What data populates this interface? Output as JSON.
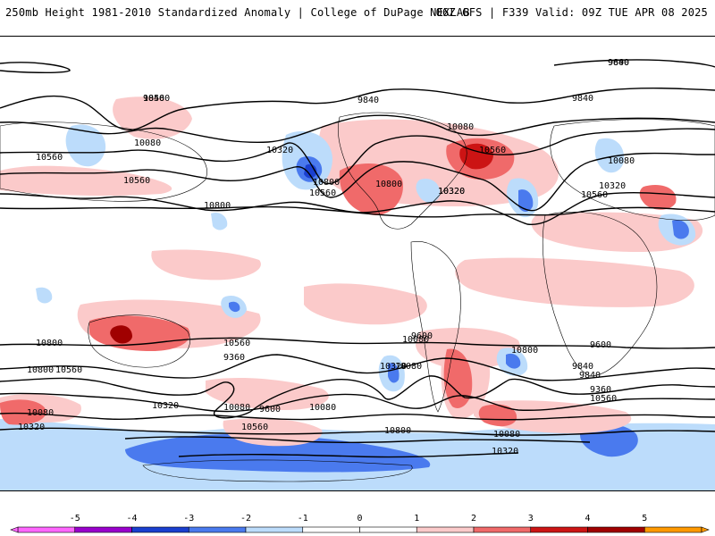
{
  "header": {
    "title": "250mb Height 1981-2010 Standardized Anomaly | College of DuPage NEXLAB",
    "run_info": "06Z GFS | F339 Valid: 09Z TUE APR 08 2025"
  },
  "map": {
    "contour_labels": [
      "9600",
      "9840",
      "9840",
      "10080",
      "10320",
      "10560",
      "10800",
      "10080",
      "10560",
      "10320",
      "9840",
      "10560",
      "10080",
      "10320",
      "10560",
      "10800",
      "10800",
      "10560",
      "10320",
      "10800",
      "10560",
      "10080",
      "9600",
      "9360",
      "10080",
      "9840",
      "10800",
      "10560",
      "10080",
      "10320",
      "10320",
      "9600",
      "9840",
      "9360",
      "10800",
      "10560",
      "10080",
      "9600",
      "10080",
      "10320",
      "10560",
      "10800",
      "10080",
      "10320",
      "9840",
      "10560"
    ],
    "anomaly_colors": {
      "neg5": "#ff66ff",
      "neg4": "#9900cc",
      "neg3": "#1a3fcf",
      "neg2": "#4a7aee",
      "neg1": "#bcdcfb",
      "pos1": "#fbcaca",
      "pos2": "#f06a6a",
      "pos3": "#cc1414",
      "pos4": "#a00000",
      "pos5": "#ff9900"
    }
  },
  "colorbar": {
    "ticks": [
      "-5",
      "-4",
      "-3",
      "-2",
      "-1",
      "0",
      "1",
      "2",
      "3",
      "4",
      "5"
    ],
    "colors": [
      "#ff66ff",
      "#9900cc",
      "#1a3fcf",
      "#4a7aee",
      "#bcdcfb",
      "#ffffff",
      "#ffffff",
      "#fbcaca",
      "#f06a6a",
      "#cc1414",
      "#a00000",
      "#ff9900"
    ]
  }
}
